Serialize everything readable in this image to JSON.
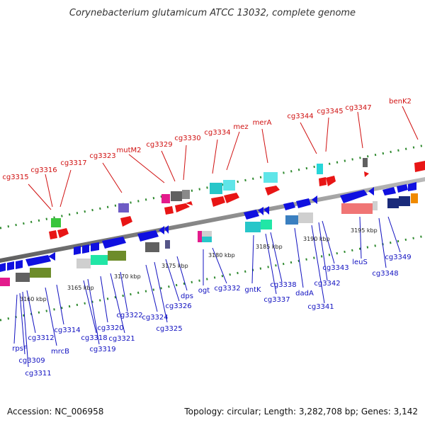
{
  "title": "Corynebacterium glutamicum ATCC 13032, complete genome",
  "footer": {
    "accession": "Accession: NC_006958",
    "summary": "Topology: circular; Length: 3,282,708 bp; Genes: 3,142"
  },
  "colors": {
    "forward_label": "#d01010",
    "reverse_label": "#1010c0",
    "backbone": "#8c8c8c",
    "dots": "#2f8a2f"
  },
  "scale_labels": [
    "3160 kbp",
    "3165 kbp",
    "3170 kbp",
    "3175 kbp",
    "3180 kbp",
    "3185 kbp",
    "3190 kbp",
    "3195 kbp"
  ],
  "forward_labels": [
    "cg3315",
    "cg3316",
    "cg3317",
    "cg3323",
    "mutM2",
    "cg3329",
    "cg3330",
    "cg3334",
    "mez",
    "merA",
    "cg3344",
    "cg3345",
    "cg3347",
    "benK2"
  ],
  "reverse_labels": [
    "rpsF",
    "cg3309",
    "cg3311",
    "cg3312",
    "mrcB",
    "cg3314",
    "cg3318",
    "cg3319",
    "cg3320",
    "cg3321",
    "cg3322",
    "cg3324",
    "cg3325",
    "cg3326",
    "dps",
    "ogt",
    "cg3332",
    "gntK",
    "cg3337",
    "cg3338",
    "dadA",
    "cg3341",
    "cg3342",
    "cg3343",
    "leuS",
    "cg3348",
    "cg3349"
  ]
}
